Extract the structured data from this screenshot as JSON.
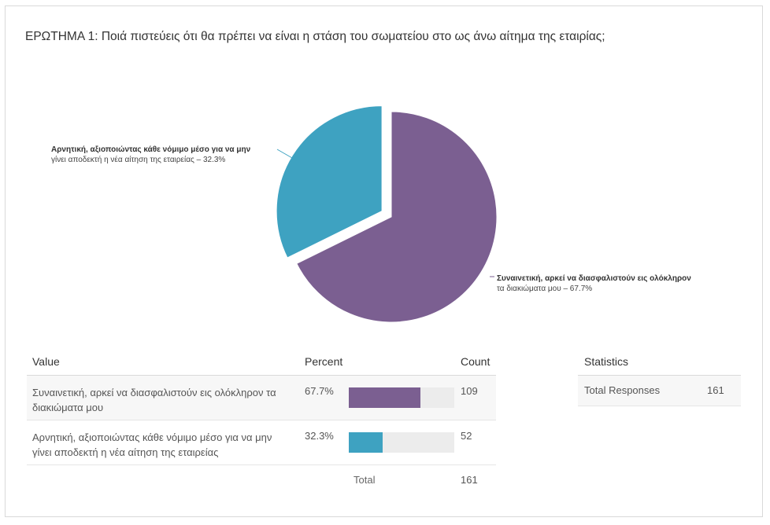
{
  "question": {
    "title": "ΕΡΩΤΗΜΑ 1: Ποιά πιστεύεις ότι θα πρέπει να είναι η στάση του σωματείου στο ως άνω αίτημα της εταιρίας;"
  },
  "chart_data": {
    "type": "pie",
    "title": "",
    "slices": [
      {
        "label_line1": "Συναινετική, αρκεί να διασφαλιστούν εις ολόκληρον",
        "label_line2": "τα διακιώματα μου – 67.7%",
        "value": 67.7,
        "color": "#7b5f91",
        "exploded": false
      },
      {
        "label_line1": "Αρνητική, αξιοποιώντας κάθε νόμιμο μέσο για να μην",
        "label_line2": "γίνει αποδεκτή η νέα αίτηση της εταιρείας – 32.3%",
        "value": 32.3,
        "color": "#3ea2c1",
        "exploded": true
      }
    ]
  },
  "table": {
    "headers": {
      "value": "Value",
      "percent": "Percent",
      "count": "Count"
    },
    "rows": [
      {
        "value": "Συναινετική, αρκεί να διασφαλιστούν εις ολόκληρον τα διακιώματα μου",
        "percent": "67.7%",
        "fraction": 0.677,
        "count": "109",
        "color": "#7b5f91"
      },
      {
        "value": "Αρνητική, αξιοποιώντας κάθε νόμιμο μέσο για να μην γίνει αποδεκτή η νέα αίτηση της εταιρείας",
        "percent": "32.3%",
        "fraction": 0.323,
        "count": "52",
        "color": "#3ea2c1"
      }
    ],
    "total_label": "Total",
    "total_count": "161"
  },
  "statistics": {
    "header": "Statistics",
    "total_responses_label": "Total Responses",
    "total_responses_value": "161"
  }
}
